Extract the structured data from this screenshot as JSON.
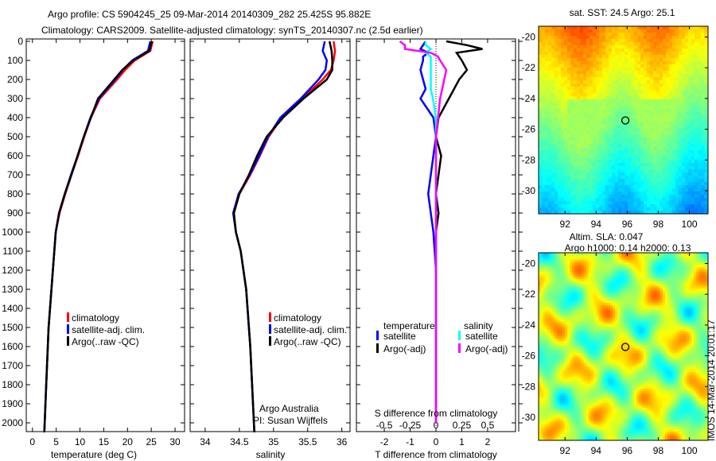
{
  "title_line1": "Argo profile: CS 5904245_25 09-Mar-2014 20140309_282 25.425S 95.882E",
  "title_line2": "Climatology: CARS2009. Satellite-adjusted climatology: synTS_20140307.nc (2.5d earlier)",
  "side_label": "IMOS 14-Mar-2014 20:01:17",
  "chart_data": [
    {
      "type": "line",
      "xlabel": "temperature (deg C)",
      "ylabel": "depth",
      "xlim": [
        -1.3,
        32
      ],
      "ylim": [
        2050,
        0
      ],
      "xticks": [
        "0",
        "5",
        "10",
        "15",
        "20",
        "25",
        "30"
      ],
      "yticks": [
        "0",
        "100",
        "200",
        "300",
        "400",
        "500",
        "600",
        "700",
        "800",
        "900",
        "1000",
        "1100",
        "1200",
        "1300",
        "1400",
        "1500",
        "1600",
        "1700",
        "1800",
        "1900",
        "2000"
      ],
      "depth": [
        0,
        50,
        100,
        150,
        200,
        300,
        400,
        500,
        600,
        700,
        800,
        900,
        1000,
        1200,
        1500,
        1800,
        2050
      ],
      "series": [
        {
          "name": "climatology",
          "color": "#ff0000",
          "values": [
            25.3,
            24.8,
            21.5,
            19.5,
            17.8,
            14.2,
            12.3,
            10.9,
            9.6,
            8.2,
            6.9,
            5.7,
            4.9,
            4.3,
            3.4,
            2.9,
            2.5
          ]
        },
        {
          "name": "satellite-adj. clim.",
          "color": "#0000ff",
          "values": [
            24.8,
            24.3,
            21.0,
            19.0,
            17.4,
            14.0,
            12.2,
            10.8,
            9.5,
            8.1,
            6.8,
            5.6,
            4.9,
            4.3,
            3.4,
            2.9,
            2.5
          ]
        },
        {
          "name": "Argo(..raw -QC)",
          "color": "#000000",
          "values": [
            25.1,
            24.6,
            21.2,
            18.9,
            17.2,
            13.8,
            12.3,
            10.8,
            9.5,
            8.2,
            6.8,
            5.6,
            4.9,
            4.3,
            3.4,
            2.9,
            2.5
          ]
        }
      ],
      "legend": [
        "climatology",
        "satellite-adj. clim.",
        "Argo(..raw -QC)"
      ]
    },
    {
      "type": "line",
      "xlabel": "salinity",
      "xlim": [
        33.78,
        36.12
      ],
      "ylim": [
        2050,
        0
      ],
      "xticks": [
        "34",
        "34.5",
        "35",
        "35.5",
        "36"
      ],
      "depth": [
        0,
        50,
        100,
        150,
        200,
        300,
        400,
        500,
        600,
        700,
        800,
        900,
        1000,
        1100,
        1300,
        1600,
        2050
      ],
      "series": [
        {
          "name": "climatology",
          "color": "#ff0000",
          "values": [
            35.88,
            35.9,
            35.88,
            35.84,
            35.72,
            35.42,
            35.12,
            34.93,
            34.8,
            34.66,
            34.5,
            34.42,
            34.45,
            34.52,
            34.6,
            34.66,
            34.72
          ]
        },
        {
          "name": "satellite-adj. clim.",
          "color": "#0000ff",
          "values": [
            35.75,
            35.72,
            35.78,
            35.76,
            35.66,
            35.4,
            35.1,
            34.92,
            34.79,
            34.65,
            34.49,
            34.41,
            34.45,
            34.52,
            34.6,
            34.66,
            34.72
          ]
        },
        {
          "name": "Argo(..raw -QC)",
          "color": "#000000",
          "values": [
            35.82,
            35.85,
            35.86,
            35.86,
            35.78,
            35.44,
            35.14,
            34.9,
            34.76,
            34.64,
            34.5,
            34.42,
            34.45,
            34.52,
            34.6,
            34.66,
            34.72
          ]
        }
      ],
      "legend": [
        "climatology",
        "satellite-adj. clim.",
        "Argo(..raw -QC)"
      ],
      "annotation1": "Argo Australia",
      "annotation2": "PI: Susan Wijffels"
    },
    {
      "type": "line",
      "xlabel": "T difference from climatology",
      "xlabel2": "S difference from climatology",
      "xlim": [
        -3.08,
        3.08
      ],
      "xlim_salinity": [
        -0.77,
        0.77
      ],
      "ylim": [
        2050,
        0
      ],
      "xticks": [
        "-2",
        "-1",
        "0",
        "1",
        "2"
      ],
      "xticks2": [
        "-0.5",
        "-0.25",
        "0",
        "0.25",
        "0.5"
      ],
      "depth": [
        0,
        20,
        40,
        60,
        80,
        100,
        150,
        200,
        250,
        300,
        400,
        500,
        600,
        700,
        800,
        900,
        1000,
        1200,
        1500,
        2000
      ],
      "series": [
        {
          "name": "temperature satellite",
          "color": "#0000ff",
          "values": [
            -0.4,
            -0.5,
            -0.6,
            -0.3,
            -0.5,
            -0.5,
            -0.6,
            -0.5,
            -0.4,
            -0.6,
            -0.1,
            0,
            -0.1,
            -0.2,
            -0.3,
            -0.2,
            -0.1,
            0,
            0,
            0
          ]
        },
        {
          "name": "temperature Argo(-adj)",
          "color": "#000000",
          "values": [
            0.4,
            1.2,
            1.8,
            0.8,
            0.9,
            1.0,
            1.2,
            0.9,
            0.7,
            0.5,
            0.1,
            0,
            0.2,
            0.1,
            0,
            0.1,
            0,
            0,
            0,
            0
          ]
        },
        {
          "name": "salinity satellite",
          "color": "#00ffff",
          "values": [
            -0.1,
            -0.1,
            -0.05,
            -0.1,
            -0.05,
            -0.05,
            -0.05,
            -0.05,
            -0.05,
            -0.03,
            0,
            0,
            0,
            0,
            0,
            0,
            0,
            0,
            0,
            0
          ]
        },
        {
          "name": "salinity Argo(-adj)",
          "color": "#ff00ff",
          "values": [
            -0.35,
            -0.3,
            -0.3,
            -0.05,
            0.02,
            0.04,
            0.1,
            0.08,
            0.06,
            0.04,
            0.02,
            0,
            0,
            0,
            0,
            0,
            0,
            0,
            0,
            0
          ]
        }
      ],
      "legend_title_t": "temperature",
      "legend_title_s": "salinity",
      "legend": [
        "satellite",
        "Argo(-adj)",
        "satellite",
        "Argo(-adj)"
      ]
    },
    {
      "type": "heatmap",
      "title": "sat. SST: 24.5 Argo: 25.1",
      "xticks": [
        "92",
        "94",
        "96",
        "98",
        "100"
      ],
      "yticks": [
        "-20",
        "-22",
        "-24",
        "-26",
        "-28",
        "-30"
      ],
      "marker_lon": 95.882,
      "marker_lat": -25.425
    },
    {
      "type": "heatmap",
      "title1": "Altim. SLA: 0.047",
      "title2": "Argo h1000: 0.14 h2000: 0.13",
      "xticks": [
        "92",
        "94",
        "96",
        "98",
        "100"
      ],
      "yticks": [
        "-20",
        "-22",
        "-24",
        "-26",
        "-28",
        "-30"
      ],
      "marker_lon": 95.882,
      "marker_lat": -25.425
    }
  ]
}
